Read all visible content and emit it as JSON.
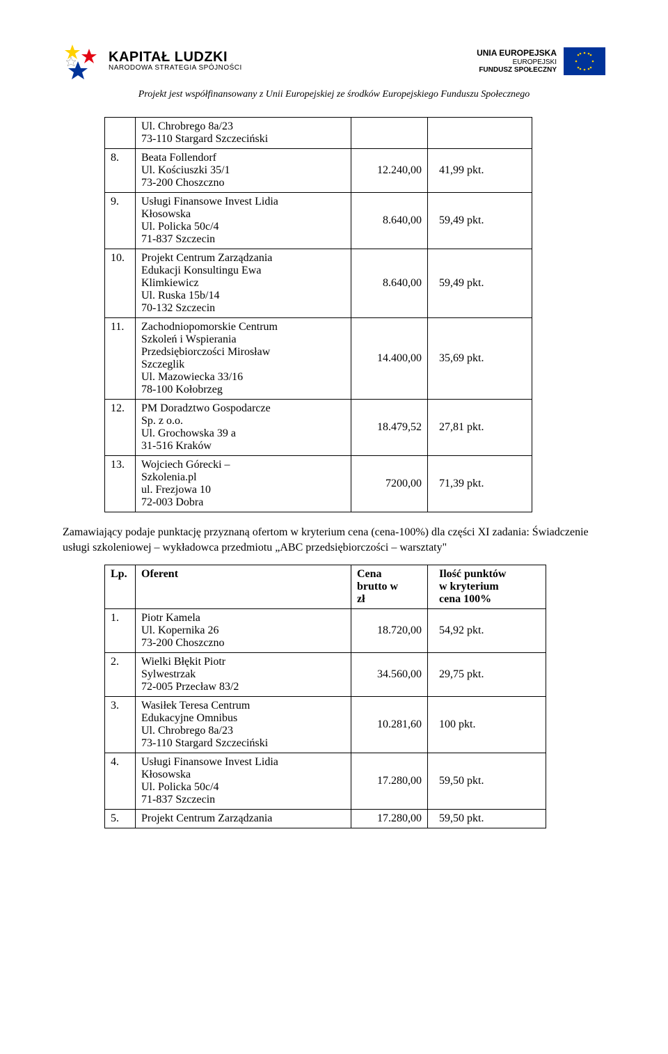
{
  "header": {
    "left_logo_title": "KAPITAŁ LUDZKI",
    "left_logo_sub": "NARODOWA STRATEGIA SPÓJNOŚCI",
    "right_line1": "UNIA EUROPEJSKA",
    "right_line2": "EUROPEJSKI",
    "right_line3": "FUNDUSZ SPOŁECZNY",
    "subheader": "Projekt jest współfinansowany z Unii Europejskiej ze środków Europejskiego Funduszu Społecznego"
  },
  "table1": {
    "rows": [
      {
        "num": "",
        "desc": "Ul. Chrobrego 8a/23\n73-110 Stargard Szczeciński",
        "v1": "",
        "v2": ""
      },
      {
        "num": "8.",
        "desc": "Beata Follendorf\nUl. Kościuszki 35/1\n73-200 Choszczno",
        "v1": "12.240,00",
        "v2": "41,99 pkt."
      },
      {
        "num": "9.",
        "desc": "Usługi Finansowe Invest Lidia\nKłosowska\nUl. Policka 50c/4\n71-837 Szczecin",
        "v1": "8.640,00",
        "v2": "59,49 pkt."
      },
      {
        "num": "10.",
        "desc": "Projekt Centrum Zarządzania\nEdukacji Konsultingu Ewa\nKlimkiewicz\nUl. Ruska 15b/14\n70-132 Szczecin",
        "v1": "8.640,00",
        "v2": "59,49 pkt."
      },
      {
        "num": "11.",
        "desc": "Zachodniopomorskie Centrum\nSzkoleń i Wspierania\nPrzedsiębiorczości Mirosław\nSzczeglik\nUl. Mazowiecka 33/16\n78-100 Kołobrzeg",
        "v1": "14.400,00",
        "v2": "35,69 pkt."
      },
      {
        "num": "12.",
        "desc": "PM Doradztwo Gospodarcze\nSp. z o.o.\nUl. Grochowska 39 a\n31-516 Kraków",
        "v1": "18.479,52",
        "v2": "27,81 pkt."
      },
      {
        "num": "13.",
        "desc": "Wojciech Górecki –\nSzkolenia.pl\nul. Frezjowa 10\n72-003 Dobra",
        "v1": "7200,00",
        "v2": "71,39 pkt."
      }
    ]
  },
  "paragraph": "Zamawiający podaje punktację przyznaną ofertom w kryterium cena (cena-100%) dla części XI zadania: Świadczenie usługi szkoleniowej – wykładowca przedmiotu „ABC przedsiębiorczości – warsztaty\"",
  "table2": {
    "headers": {
      "lp": "Lp.",
      "oferent": "Oferent",
      "cena": "Cena\nbrutto w\nzł",
      "ilosc": "Ilość punktów\nw kryterium\ncena 100%"
    },
    "rows": [
      {
        "num": "1.",
        "desc": "Piotr Kamela\nUl. Kopernika 26\n73-200 Choszczno",
        "v1": "18.720,00",
        "v2": "54,92 pkt."
      },
      {
        "num": "2.",
        "desc": "Wielki Błękit Piotr\nSylwestrzak\n72-005 Przecław 83/2",
        "v1": "34.560,00",
        "v2": "29,75 pkt."
      },
      {
        "num": "3.",
        "desc": "Wasiłek Teresa Centrum\nEdukacyjne Omnibus\nUl. Chrobrego 8a/23\n73-110 Stargard Szczeciński",
        "v1": "10.281,60",
        "v2": "100 pkt."
      },
      {
        "num": "4.",
        "desc": "Usługi Finansowe Invest Lidia\nKłosowska\nUl. Policka 50c/4\n71-837 Szczecin",
        "v1": "17.280,00",
        "v2": "59,50 pkt."
      },
      {
        "num": "5.",
        "desc": "Projekt Centrum Zarządzania",
        "v1": "17.280,00",
        "v2": "59,50 pkt."
      }
    ]
  },
  "colors": {
    "text": "#000000",
    "background": "#ffffff",
    "border": "#000000",
    "eu_blue": "#003399",
    "eu_gold": "#ffcc00",
    "star_yellow": "#ffd100",
    "star_red": "#e30613",
    "star_blue": "#003399"
  }
}
